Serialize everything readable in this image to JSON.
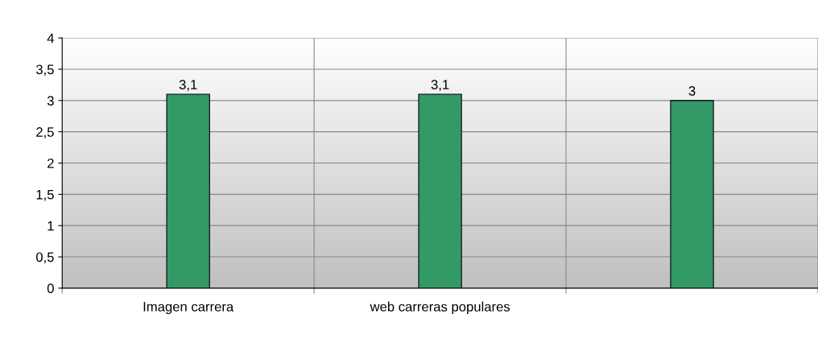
{
  "chart_data": {
    "type": "bar",
    "categories": [
      "Imagen carrera",
      "web carreras populares",
      null
    ],
    "values": [
      3.1,
      3.1,
      3.0
    ],
    "value_labels": [
      "3,1",
      "3,1",
      "3"
    ],
    "color": "#339966",
    "ylim": [
      0,
      4
    ],
    "yticks": [
      0,
      {
        "value": 0.5,
        "label": "0,5"
      },
      1,
      {
        "value": 1.5,
        "label": "1,5"
      },
      2,
      {
        "value": 2.5,
        "label": "2,5"
      },
      3,
      {
        "value": 3.5,
        "label": "3,5"
      },
      4
    ],
    "grid": true
  }
}
